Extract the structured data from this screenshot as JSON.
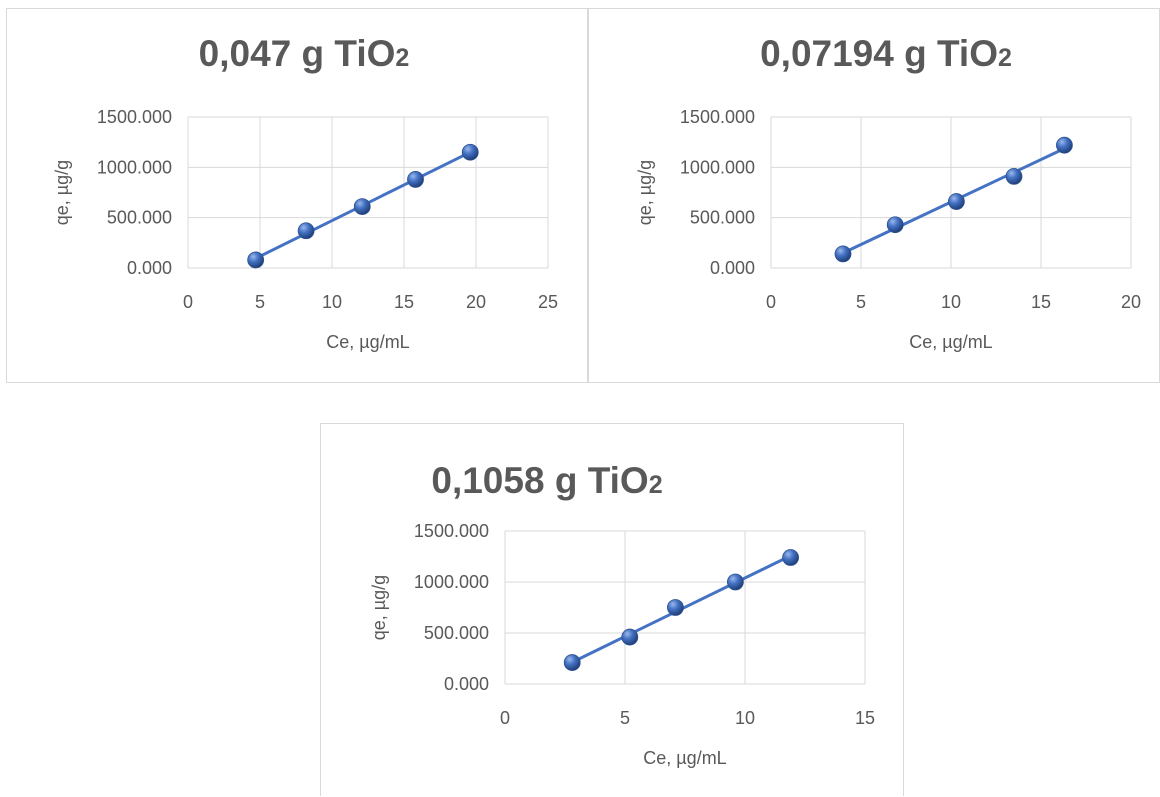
{
  "chart_data": [
    {
      "type": "scatter",
      "title": "0,047 g TiO",
      "title_sub": "2",
      "xlabel": "Ce, µg/mL",
      "ylabel": "qe, µg/g",
      "xlim": [
        0,
        25
      ],
      "ylim": [
        0,
        1500
      ],
      "xticks": [
        "0",
        "5",
        "10",
        "15",
        "20",
        "25"
      ],
      "yticks": [
        "0.000",
        "500.000",
        "1000.000",
        "1500.000"
      ],
      "grid": true,
      "trendline": true,
      "series": [
        {
          "x": [
            4.7,
            8.2,
            12.1,
            15.8,
            19.6
          ],
          "y": [
            80,
            370,
            610,
            880,
            1150
          ]
        }
      ]
    },
    {
      "type": "scatter",
      "title": "0,07194 g  TiO",
      "title_sub": "2",
      "xlabel": "Ce, µg/mL",
      "ylabel": "qe, µg/g",
      "xlim": [
        0,
        20
      ],
      "ylim": [
        0,
        1500
      ],
      "xticks": [
        "0",
        "5",
        "10",
        "15",
        "20"
      ],
      "yticks": [
        "0.000",
        "500.000",
        "1000.000",
        "1500.000"
      ],
      "grid": true,
      "trendline": true,
      "series": [
        {
          "x": [
            4.0,
            6.9,
            10.3,
            13.5,
            16.3
          ],
          "y": [
            140,
            430,
            660,
            910,
            1220
          ]
        }
      ]
    },
    {
      "type": "scatter",
      "title": "0,1058 g TiO",
      "title_sub": "2",
      "xlabel": "Ce, µg/mL",
      "ylabel": "qe, µg/g",
      "xlim": [
        0,
        15
      ],
      "ylim": [
        0,
        1500
      ],
      "xticks": [
        "0",
        "5",
        "10",
        "15"
      ],
      "yticks": [
        "0.000",
        "500.000",
        "1000.000",
        "1500.000"
      ],
      "grid": true,
      "trendline": true,
      "series": [
        {
          "x": [
            2.8,
            5.2,
            7.1,
            9.6,
            11.9
          ],
          "y": [
            210,
            460,
            750,
            1000,
            1240
          ]
        }
      ]
    }
  ],
  "colors": {
    "marker": "#4472c4",
    "trendline": "#4472c4",
    "grid": "#d9d9d9",
    "text": "#595959"
  }
}
